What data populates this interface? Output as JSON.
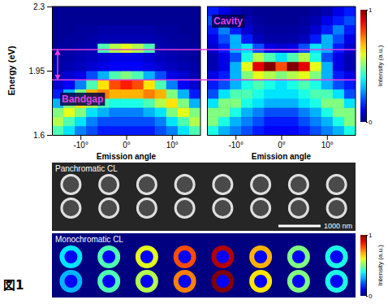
{
  "chart_data": [
    {
      "type": "heatmap",
      "ylabel": "Energy (eV)",
      "xlabel": "Emission angle",
      "annotation": "Bandgap",
      "xlim": [
        -16.25,
        16.25
      ],
      "ylim": [
        1.6,
        2.3
      ],
      "xticks": [
        {
          "value": -10,
          "label": "-10°"
        },
        {
          "value": 0,
          "label": "0°"
        },
        {
          "value": 10,
          "label": "10°"
        }
      ],
      "yticks": [
        1.6,
        1.95,
        2.3
      ],
      "x": [
        -15,
        -12.5,
        -10,
        -7.5,
        -5,
        -2.5,
        0,
        2.5,
        5,
        7.5,
        10,
        12.5,
        15
      ],
      "y": [
        1.625,
        1.675,
        1.725,
        1.775,
        1.825,
        1.875,
        1.925,
        1.975,
        2.025,
        2.075,
        2.125,
        2.175,
        2.225,
        2.275
      ],
      "z": [
        [
          0.45,
          0.35,
          0.25,
          0.2,
          0.15,
          0.15,
          0.15,
          0.15,
          0.15,
          0.2,
          0.25,
          0.35,
          0.45
        ],
        [
          0.55,
          0.45,
          0.35,
          0.25,
          0.2,
          0.2,
          0.2,
          0.2,
          0.2,
          0.25,
          0.35,
          0.45,
          0.55
        ],
        [
          0.5,
          0.6,
          0.5,
          0.35,
          0.3,
          0.25,
          0.25,
          0.25,
          0.3,
          0.35,
          0.5,
          0.6,
          0.5
        ],
        [
          0.3,
          0.5,
          0.65,
          0.55,
          0.45,
          0.4,
          0.4,
          0.4,
          0.45,
          0.55,
          0.65,
          0.5,
          0.3
        ],
        [
          0.15,
          0.3,
          0.5,
          0.7,
          0.75,
          0.7,
          0.7,
          0.7,
          0.75,
          0.7,
          0.5,
          0.3,
          0.15
        ],
        [
          0.08,
          0.12,
          0.25,
          0.45,
          0.65,
          0.8,
          0.85,
          0.8,
          0.65,
          0.45,
          0.25,
          0.12,
          0.08
        ],
        [
          0.05,
          0.08,
          0.1,
          0.2,
          0.3,
          0.45,
          0.5,
          0.45,
          0.3,
          0.2,
          0.1,
          0.08,
          0.05
        ],
        [
          0.04,
          0.05,
          0.06,
          0.08,
          0.1,
          0.12,
          0.12,
          0.12,
          0.1,
          0.08,
          0.06,
          0.05,
          0.04
        ],
        [
          0.03,
          0.04,
          0.05,
          0.06,
          0.08,
          0.1,
          0.1,
          0.1,
          0.08,
          0.06,
          0.05,
          0.04,
          0.03
        ],
        [
          0.03,
          0.03,
          0.04,
          0.05,
          0.45,
          0.55,
          0.6,
          0.55,
          0.45,
          0.05,
          0.04,
          0.03,
          0.03
        ],
        [
          0.02,
          0.03,
          0.03,
          0.04,
          0.05,
          0.05,
          0.05,
          0.05,
          0.05,
          0.04,
          0.03,
          0.03,
          0.02
        ],
        [
          0.02,
          0.02,
          0.03,
          0.03,
          0.04,
          0.04,
          0.04,
          0.04,
          0.04,
          0.03,
          0.03,
          0.02,
          0.02
        ],
        [
          0.02,
          0.02,
          0.02,
          0.02,
          0.02,
          0.02,
          0.02,
          0.02,
          0.02,
          0.02,
          0.02,
          0.02,
          0.02
        ],
        [
          0.02,
          0.02,
          0.02,
          0.02,
          0.02,
          0.02,
          0.02,
          0.02,
          0.02,
          0.02,
          0.02,
          0.02,
          0.02
        ]
      ]
    },
    {
      "type": "heatmap",
      "xlabel": "Emission angle",
      "annotation": "Cavity",
      "tick_labels": "x",
      "xlim": [
        -16.25,
        16.25
      ],
      "ylim": [
        1.6,
        2.3
      ],
      "xticks": [
        {
          "value": -10,
          "label": "-10°"
        },
        {
          "value": 0,
          "label": "0°"
        },
        {
          "value": 10,
          "label": "10°"
        }
      ],
      "x": [
        -15,
        -12.5,
        -10,
        -7.5,
        -5,
        -2.5,
        0,
        2.5,
        5,
        7.5,
        10,
        12.5,
        15
      ],
      "y": [
        1.625,
        1.675,
        1.725,
        1.775,
        1.825,
        1.875,
        1.925,
        1.975,
        2.025,
        2.075,
        2.125,
        2.175,
        2.225,
        2.275
      ],
      "z": [
        [
          0.4,
          0.3,
          0.25,
          0.2,
          0.15,
          0.12,
          0.12,
          0.12,
          0.15,
          0.2,
          0.25,
          0.3,
          0.4
        ],
        [
          0.5,
          0.4,
          0.3,
          0.25,
          0.2,
          0.15,
          0.15,
          0.15,
          0.2,
          0.25,
          0.3,
          0.4,
          0.5
        ],
        [
          0.5,
          0.5,
          0.4,
          0.3,
          0.25,
          0.2,
          0.2,
          0.2,
          0.25,
          0.3,
          0.4,
          0.5,
          0.5
        ],
        [
          0.35,
          0.5,
          0.5,
          0.4,
          0.35,
          0.3,
          0.3,
          0.3,
          0.35,
          0.4,
          0.5,
          0.5,
          0.35
        ],
        [
          0.2,
          0.35,
          0.45,
          0.45,
          0.4,
          0.35,
          0.35,
          0.35,
          0.4,
          0.45,
          0.45,
          0.35,
          0.2
        ],
        [
          0.15,
          0.2,
          0.3,
          0.4,
          0.45,
          0.4,
          0.35,
          0.4,
          0.45,
          0.4,
          0.3,
          0.2,
          0.15
        ],
        [
          0.1,
          0.15,
          0.3,
          0.5,
          0.6,
          0.55,
          0.5,
          0.55,
          0.6,
          0.5,
          0.3,
          0.15,
          0.1
        ],
        [
          0.05,
          0.1,
          0.3,
          0.6,
          0.9,
          1.0,
          0.8,
          1.0,
          0.9,
          0.6,
          0.3,
          0.1,
          0.05
        ],
        [
          0.05,
          0.1,
          0.2,
          0.4,
          0.55,
          0.45,
          0.35,
          0.45,
          0.55,
          0.4,
          0.2,
          0.1,
          0.05
        ],
        [
          0.08,
          0.15,
          0.3,
          0.35,
          0.2,
          0.1,
          0.08,
          0.1,
          0.2,
          0.35,
          0.3,
          0.15,
          0.08
        ],
        [
          0.1,
          0.2,
          0.3,
          0.15,
          0.06,
          0.04,
          0.04,
          0.04,
          0.06,
          0.15,
          0.3,
          0.2,
          0.1
        ],
        [
          0.15,
          0.25,
          0.15,
          0.08,
          0.04,
          0.03,
          0.03,
          0.03,
          0.04,
          0.08,
          0.15,
          0.25,
          0.15
        ],
        [
          0.2,
          0.15,
          0.1,
          0.05,
          0.03,
          0.02,
          0.02,
          0.02,
          0.03,
          0.05,
          0.1,
          0.15,
          0.2
        ],
        [
          0.15,
          0.1,
          0.05,
          0.03,
          0.02,
          0.02,
          0.02,
          0.02,
          0.02,
          0.03,
          0.05,
          0.1,
          0.15
        ]
      ],
      "colorbar": {
        "label": "Intensity (a.u.)",
        "range": [
          0,
          1
        ],
        "ticks": [
          0,
          1
        ]
      }
    }
  ],
  "highlight_energies": [
    1.9,
    2.065
  ],
  "panchromatic": {
    "label": "Panchromatic CL",
    "scale_bar": "1000 nm"
  },
  "monochromatic": {
    "label": "Monochromatic CL",
    "cells": [
      [
        0.35,
        0.45,
        0.6,
        0.8,
        0.95,
        0.7,
        0.5,
        0.4
      ],
      [
        0.3,
        0.45,
        0.55,
        0.75,
        1.0,
        0.65,
        0.5,
        0.4
      ]
    ],
    "colorbar": {
      "label": "Intensity (a.u.)",
      "range": [
        0,
        1
      ],
      "ticks": [
        0,
        1
      ]
    }
  },
  "figure_label": "図1"
}
